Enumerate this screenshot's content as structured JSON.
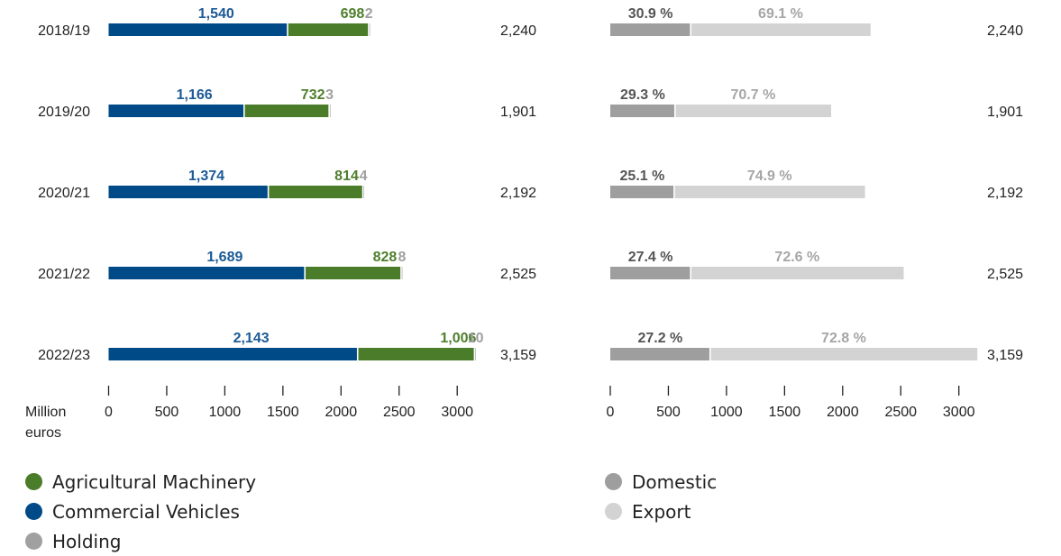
{
  "chart_data": [
    {
      "type": "bar",
      "orientation": "horizontal",
      "stacked": true,
      "categories": [
        "2018/19",
        "2019/20",
        "2020/21",
        "2021/22",
        "2022/23"
      ],
      "series": [
        {
          "name": "Commercial Vehicles",
          "color": "#004a87",
          "values": [
            1540,
            1166,
            1374,
            1689,
            2143
          ],
          "labels": [
            "1,540",
            "1,166",
            "1,374",
            "1,689",
            "2,143"
          ]
        },
        {
          "name": "Agricultural Machinery",
          "color": "#4a7c2a",
          "values": [
            698,
            732,
            814,
            828,
            1006
          ],
          "labels": [
            "698",
            "732",
            "814",
            "828",
            "1,006"
          ]
        },
        {
          "name": "Holding",
          "color": "#a0a0a0",
          "values": [
            2,
            3,
            4,
            8,
            10
          ],
          "labels": [
            "2",
            "3",
            "4",
            "8",
            "10"
          ]
        }
      ],
      "totals": [
        "2,240",
        "1,901",
        "2,192",
        "2,525",
        "3,159"
      ],
      "xlabel": [
        "Million",
        "euros"
      ],
      "xlim": [
        0,
        3250
      ],
      "xticks": [
        0,
        500,
        1000,
        1500,
        2000,
        2500,
        3000
      ],
      "xtick_labels": [
        "0",
        "500",
        "1000",
        "1500",
        "2000",
        "2500",
        "3000"
      ],
      "legend_position": "bottom-left"
    },
    {
      "type": "bar",
      "orientation": "horizontal",
      "stacked": true,
      "categories": [
        "2018/19",
        "2019/20",
        "2020/21",
        "2021/22",
        "2022/23"
      ],
      "series": [
        {
          "name": "Domestic",
          "color": "#9e9e9e",
          "values": [
            692,
            557,
            550,
            692,
            859
          ],
          "labels": [
            "30.9 %",
            "29.3 %",
            "25.1 %",
            "27.4 %",
            "27.2 %"
          ]
        },
        {
          "name": "Export",
          "color": "#d3d3d3",
          "values": [
            1548,
            1344,
            1642,
            1833,
            2300
          ],
          "labels": [
            "69.1 %",
            "70.7 %",
            "74.9 %",
            "72.6 %",
            "72.8 %"
          ]
        }
      ],
      "totals": [
        "2,240",
        "1,901",
        "2,192",
        "2,525",
        "3,159"
      ],
      "xlim": [
        0,
        3250
      ],
      "xticks": [
        0,
        500,
        1000,
        1500,
        2000,
        2500,
        3000
      ],
      "xtick_labels": [
        "0",
        "500",
        "1000",
        "1500",
        "2000",
        "2500",
        "3000"
      ],
      "legend_position": "bottom"
    }
  ],
  "legend_left": [
    {
      "label": "Agricultural Machinery",
      "color": "#4a7c2a"
    },
    {
      "label": "Commercial Vehicles",
      "color": "#004a87"
    },
    {
      "label": "Holding",
      "color": "#a0a0a0"
    }
  ],
  "legend_right": [
    {
      "label": "Domestic",
      "color": "#9e9e9e"
    },
    {
      "label": "Export",
      "color": "#d3d3d3"
    }
  ]
}
